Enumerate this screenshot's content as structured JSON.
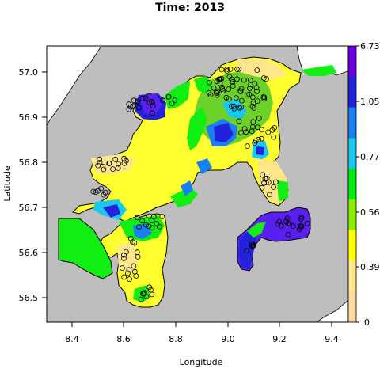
{
  "title": "Time: 2013",
  "map": {
    "x_axis": {
      "label": "Longitude",
      "ticks": [
        "8.4",
        "8.6",
        "8.8",
        "9.0",
        "9.2",
        "9.4"
      ]
    },
    "y_axis": {
      "label": "Latitude",
      "ticks": [
        "57.0",
        "56.9",
        "56.8",
        "56.7",
        "56.6",
        "56.5"
      ]
    },
    "land_color": "#bebebe",
    "outside_color": "#ffffff"
  },
  "colorbar": {
    "labels": [
      "6.73",
      "1.05",
      "0.77",
      "0.56",
      "0.39",
      "0"
    ],
    "colors": [
      "#6a00e0",
      "#2222dd",
      "#1a7ff0",
      "#19c8f0",
      "#00ee11",
      "#88ee00",
      "#ffff00",
      "#ffe68a",
      "#ffd8a0"
    ]
  },
  "stations_note_color": "#000000"
}
